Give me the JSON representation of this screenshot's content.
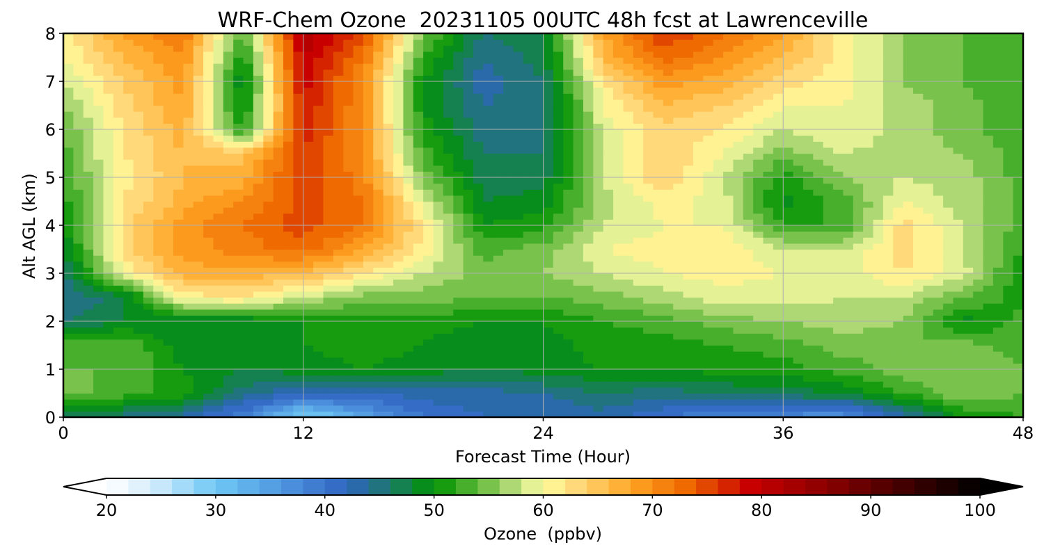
{
  "chart_data": {
    "type": "heatmap",
    "title": "WRF-Chem Ozone  20231105 00UTC 48h fcst at Lawrenceville",
    "xlabel": "Forecast Time (Hour)",
    "ylabel": "Alt AGL (km)",
    "xlim": [
      0,
      48
    ],
    "ylim": [
      0,
      8
    ],
    "xticks": [
      0,
      12,
      24,
      36,
      48
    ],
    "yticks": [
      0,
      1,
      2,
      3,
      4,
      5,
      6,
      7,
      8
    ],
    "grid": true,
    "x": [
      0,
      3,
      6,
      9,
      12,
      15,
      18,
      21,
      24,
      27,
      30,
      33,
      36,
      39,
      42,
      45,
      48
    ],
    "y": [
      0,
      0.5,
      1,
      1.5,
      2,
      2.5,
      3,
      3.5,
      4,
      4.5,
      5,
      5.5,
      6,
      6.5,
      7,
      7.5,
      8
    ],
    "values": [
      [
        47,
        45,
        43,
        38,
        28,
        34,
        40,
        42,
        42,
        43,
        40,
        38,
        37,
        36,
        43,
        50,
        52
      ],
      [
        55,
        53,
        51,
        45,
        42,
        42,
        43,
        43,
        44,
        46,
        45,
        46,
        47,
        48,
        52,
        56,
        54
      ],
      [
        54,
        54,
        50,
        48,
        49,
        50,
        49,
        48,
        49,
        50,
        50,
        51,
        51,
        53,
        55,
        56,
        54
      ],
      [
        53,
        54,
        49,
        48,
        50,
        51,
        50,
        48,
        49,
        51,
        51,
        52,
        53,
        55,
        54,
        55,
        53
      ],
      [
        46,
        48,
        48,
        48,
        50,
        51,
        51,
        50,
        50,
        52,
        53,
        55,
        56,
        57,
        56,
        49,
        53
      ],
      [
        44,
        47,
        61,
        62,
        58,
        55,
        55,
        54,
        54,
        55,
        57,
        59,
        59,
        58,
        58,
        54,
        51
      ],
      [
        45,
        60,
        67,
        67,
        66,
        62,
        58,
        55,
        56,
        58,
        60,
        61,
        60,
        59,
        62,
        59,
        50
      ],
      [
        48,
        63,
        69,
        71,
        73,
        68,
        61,
        53,
        55,
        60,
        61,
        62,
        58,
        58,
        63,
        58,
        52
      ],
      [
        50,
        63,
        69,
        72,
        75,
        72,
        62,
        50,
        51,
        58,
        60,
        60,
        52,
        52,
        63,
        58,
        53
      ],
      [
        51,
        62,
        67,
        70,
        75,
        72,
        59,
        48,
        49,
        57,
        61,
        59,
        49,
        53,
        60,
        57,
        53
      ],
      [
        52,
        61,
        66,
        67,
        76,
        71,
        55,
        47,
        47,
        58,
        64,
        58,
        51,
        56,
        58,
        57,
        53
      ],
      [
        53,
        62,
        66,
        65,
        76,
        70,
        53,
        46,
        46,
        58,
        64,
        60,
        55,
        58,
        57,
        56,
        53
      ],
      [
        54,
        62,
        67,
        51,
        77,
        70,
        51,
        45,
        45,
        59,
        63,
        62,
        58,
        60,
        57,
        55,
        52
      ],
      [
        56,
        63,
        68,
        49,
        78,
        70,
        50,
        44,
        45,
        60,
        66,
        64,
        60,
        60,
        57,
        55,
        52
      ],
      [
        58,
        64,
        69,
        48,
        79,
        70,
        50,
        43,
        46,
        62,
        69,
        67,
        63,
        61,
        56,
        54,
        52
      ],
      [
        60,
        66,
        70,
        50,
        80,
        72,
        52,
        44,
        47,
        66,
        73,
        70,
        66,
        61,
        56,
        54,
        52
      ],
      [
        61,
        68,
        72,
        53,
        82,
        75,
        55,
        46,
        48,
        68,
        76,
        72,
        68,
        61,
        56,
        54,
        52
      ]
    ]
  },
  "colorbar": {
    "label": "Ozone  (ppbv)",
    "min": 20,
    "max": 100,
    "ticks": [
      20,
      30,
      40,
      50,
      60,
      70,
      80,
      90,
      100
    ],
    "extend": "both",
    "stops": [
      {
        "v": 20,
        "c": "#ffffff"
      },
      {
        "v": 24,
        "c": "#d7eefb"
      },
      {
        "v": 30,
        "c": "#6ec8f5"
      },
      {
        "v": 37,
        "c": "#4b8fdc"
      },
      {
        "v": 42,
        "c": "#2f63bf"
      },
      {
        "v": 46,
        "c": "#1c7a6a"
      },
      {
        "v": 50,
        "c": "#009300"
      },
      {
        "v": 54,
        "c": "#5eb83a"
      },
      {
        "v": 58,
        "c": "#c9e387"
      },
      {
        "v": 60,
        "c": "#ffffa0"
      },
      {
        "v": 63,
        "c": "#ffd97a"
      },
      {
        "v": 68,
        "c": "#ffa626"
      },
      {
        "v": 73,
        "c": "#ef6a00"
      },
      {
        "v": 79,
        "c": "#c80000"
      },
      {
        "v": 86,
        "c": "#8a0000"
      },
      {
        "v": 93,
        "c": "#420000"
      },
      {
        "v": 100,
        "c": "#000000"
      }
    ]
  }
}
